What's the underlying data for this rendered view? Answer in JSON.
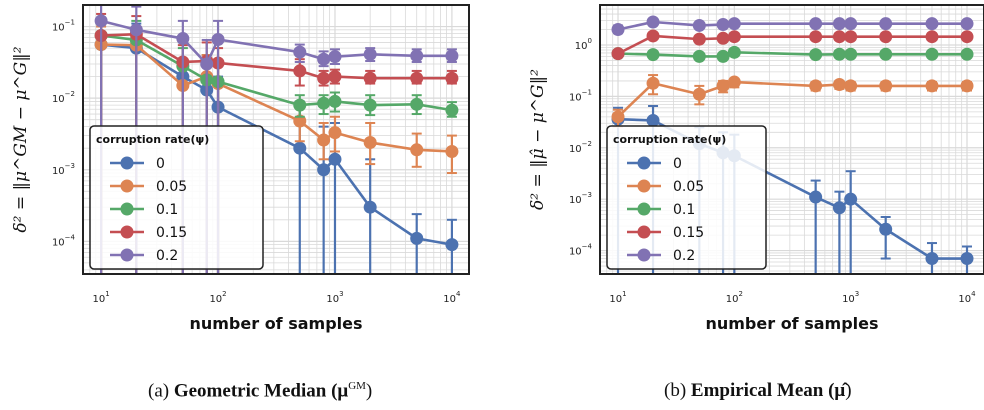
{
  "captions": [
    {
      "prefix": "(a) ",
      "title": "Geometric Median",
      "suffix": " (μ",
      "sup": "GM",
      "end": ")"
    },
    {
      "prefix": "(b) ",
      "title": "Empirical Mean",
      "suffix": " (μ̂",
      "sup": "",
      "end": ")"
    }
  ],
  "colors": {
    "0": "#4c72b0",
    "0.05": "#dd8452",
    "0.1": "#55a868",
    "0.15": "#c44e52",
    "0.2": "#8172b3"
  },
  "chart_data": [
    {
      "type": "line",
      "xscale": "log",
      "yscale": "log",
      "xlabel": "number of samples",
      "ylabel": "δ² = ‖μ^GM − μ^G‖²",
      "xlim": [
        7,
        14000
      ],
      "ylim": [
        3.5e-05,
        0.2
      ],
      "x_ticks": [
        {
          "v": 10,
          "m": "10",
          "e": "1"
        },
        {
          "v": 100,
          "m": "10",
          "e": "2"
        },
        {
          "v": 1000,
          "m": "10",
          "e": "3"
        },
        {
          "v": 10000,
          "m": "10",
          "e": "4"
        }
      ],
      "y_ticks": [
        {
          "v": 0.0001,
          "m": "10",
          "e": "−4"
        },
        {
          "v": 0.001,
          "m": "10",
          "e": "−3"
        },
        {
          "v": 0.01,
          "m": "10",
          "e": "−2"
        },
        {
          "v": 0.1,
          "m": "10",
          "e": "−1"
        }
      ],
      "grid": true,
      "legend": {
        "title": "corruption rate(ψ)",
        "position": "lower-left"
      },
      "series": [
        {
          "name": "0",
          "x": [
            10,
            20,
            50,
            80,
            100,
            500,
            800,
            1000,
            2000,
            5000,
            10000
          ],
          "y": [
            0.056,
            0.05,
            0.02,
            0.013,
            0.0075,
            0.002,
            0.001,
            0.0014,
            0.0003,
            0.00011,
            9e-05
          ],
          "lo": [
            3e-05,
            3e-05,
            3e-05,
            3e-05,
            3e-05,
            3e-05,
            3e-05,
            3e-05,
            3e-05,
            3e-05,
            3e-05
          ],
          "hi": [
            0.12,
            0.11,
            0.06,
            0.04,
            0.02,
            0.009,
            0.004,
            0.0045,
            0.0014,
            0.00024,
            0.0002
          ]
        },
        {
          "name": "0.05",
          "x": [
            10,
            20,
            50,
            80,
            100,
            500,
            800,
            1000,
            2000,
            5000,
            10000
          ],
          "y": [
            0.056,
            0.055,
            0.015,
            0.02,
            0.016,
            0.0048,
            0.0026,
            0.0033,
            0.0024,
            0.0019,
            0.0018
          ],
          "lo": [
            3e-05,
            3e-05,
            3e-05,
            3e-05,
            3e-05,
            0.0025,
            0.0014,
            0.0018,
            0.0012,
            0.0011,
            0.0009
          ],
          "hi": [
            0.1,
            0.09,
            0.028,
            0.04,
            0.03,
            0.0085,
            0.0045,
            0.0055,
            0.0045,
            0.0032,
            0.003
          ]
        },
        {
          "name": "0.1",
          "x": [
            10,
            20,
            50,
            80,
            100,
            500,
            800,
            1000,
            2000,
            5000,
            10000
          ],
          "y": [
            0.075,
            0.065,
            0.028,
            0.018,
            0.017,
            0.008,
            0.0085,
            0.009,
            0.008,
            0.0082,
            0.0068
          ],
          "lo": [
            3e-05,
            3e-05,
            3e-05,
            3e-05,
            3e-05,
            0.0055,
            0.006,
            0.0065,
            0.0058,
            0.006,
            0.0055
          ],
          "hi": [
            0.13,
            0.12,
            0.05,
            0.035,
            0.03,
            0.011,
            0.011,
            0.012,
            0.011,
            0.011,
            0.0088
          ]
        },
        {
          "name": "0.15",
          "x": [
            10,
            20,
            50,
            80,
            100,
            500,
            800,
            1000,
            2000,
            5000,
            10000
          ],
          "y": [
            0.075,
            0.078,
            0.032,
            0.033,
            0.031,
            0.024,
            0.019,
            0.02,
            0.019,
            0.019,
            0.019
          ],
          "lo": [
            3e-05,
            3e-05,
            3e-05,
            3e-05,
            3e-05,
            0.015,
            0.015,
            0.016,
            0.016,
            0.016,
            0.016
          ],
          "hi": [
            0.15,
            0.14,
            0.055,
            0.06,
            0.05,
            0.035,
            0.024,
            0.025,
            0.024,
            0.024,
            0.024
          ]
        },
        {
          "name": "0.2",
          "x": [
            10,
            20,
            50,
            80,
            100,
            500,
            800,
            1000,
            2000,
            5000,
            10000
          ],
          "y": [
            0.12,
            0.09,
            0.068,
            0.03,
            0.066,
            0.044,
            0.035,
            0.038,
            0.041,
            0.039,
            0.039
          ],
          "lo": [
            3e-05,
            3e-05,
            3e-05,
            3e-05,
            3e-05,
            0.032,
            0.028,
            0.03,
            0.033,
            0.032,
            0.032
          ],
          "hi": [
            0.21,
            0.19,
            0.12,
            0.065,
            0.12,
            0.056,
            0.045,
            0.048,
            0.05,
            0.048,
            0.048
          ]
        }
      ]
    },
    {
      "type": "line",
      "xscale": "log",
      "yscale": "log",
      "xlabel": "number of samples",
      "ylabel": "δ² = ‖μ̂ − μ^G‖²",
      "xlim": [
        7,
        14000
      ],
      "ylim": [
        3.5e-05,
        6
      ],
      "x_ticks": [
        {
          "v": 10,
          "m": "10",
          "e": "1"
        },
        {
          "v": 100,
          "m": "10",
          "e": "2"
        },
        {
          "v": 1000,
          "m": "10",
          "e": "3"
        },
        {
          "v": 10000,
          "m": "10",
          "e": "4"
        }
      ],
      "y_ticks": [
        {
          "v": 0.0001,
          "m": "10",
          "e": "−4"
        },
        {
          "v": 0.001,
          "m": "10",
          "e": "−3"
        },
        {
          "v": 0.01,
          "m": "10",
          "e": "−2"
        },
        {
          "v": 0.1,
          "m": "10",
          "e": "−1"
        },
        {
          "v": 1,
          "m": "10",
          "e": "0"
        }
      ],
      "grid": true,
      "legend": {
        "title": "corruption rate(ψ)",
        "position": "lower-left"
      },
      "series": [
        {
          "name": "0",
          "x": [
            10,
            20,
            50,
            80,
            100,
            500,
            800,
            1000,
            2000,
            5000,
            10000
          ],
          "y": [
            0.036,
            0.034,
            0.012,
            0.008,
            0.007,
            0.0011,
            0.00068,
            0.001,
            0.00026,
            7e-05,
            7e-05
          ],
          "lo": [
            3e-05,
            3e-05,
            3e-05,
            3e-05,
            3e-05,
            3e-05,
            3e-05,
            3e-05,
            7e-05,
            3e-05,
            3e-05
          ],
          "hi": [
            0.06,
            0.065,
            0.025,
            0.02,
            0.018,
            0.0023,
            0.0014,
            0.0035,
            0.00045,
            0.00014,
            0.00012
          ]
        },
        {
          "name": "0.05",
          "x": [
            10,
            20,
            50,
            80,
            100,
            500,
            800,
            1000,
            2000,
            5000,
            10000
          ],
          "y": [
            0.04,
            0.18,
            0.11,
            0.16,
            0.19,
            0.16,
            0.17,
            0.16,
            0.16,
            0.16,
            0.16
          ],
          "lo": [
            0.026,
            0.11,
            0.07,
            0.12,
            0.15,
            0.13,
            0.14,
            0.13,
            0.13,
            0.13,
            0.13
          ],
          "hi": [
            0.055,
            0.26,
            0.16,
            0.2,
            0.22,
            0.19,
            0.2,
            0.19,
            0.19,
            0.19,
            0.19
          ]
        },
        {
          "name": "0.1",
          "x": [
            10,
            20,
            50,
            80,
            100,
            500,
            800,
            1000,
            2000,
            5000,
            10000
          ],
          "y": [
            0.68,
            0.65,
            0.6,
            0.6,
            0.72,
            0.65,
            0.66,
            0.66,
            0.66,
            0.66,
            0.66
          ],
          "lo": [
            0.6,
            0.58,
            0.55,
            0.55,
            0.65,
            0.6,
            0.6,
            0.6,
            0.6,
            0.6,
            0.6
          ],
          "hi": [
            0.78,
            0.72,
            0.66,
            0.66,
            0.8,
            0.7,
            0.72,
            0.72,
            0.72,
            0.72,
            0.72
          ]
        },
        {
          "name": "0.15",
          "x": [
            10,
            20,
            50,
            80,
            100,
            500,
            800,
            1000,
            2000,
            5000,
            10000
          ],
          "y": [
            0.68,
            1.5,
            1.3,
            1.35,
            1.45,
            1.45,
            1.45,
            1.45,
            1.45,
            1.45,
            1.45
          ],
          "lo": [
            0.6,
            1.35,
            1.2,
            1.25,
            1.35,
            1.35,
            1.35,
            1.35,
            1.35,
            1.35,
            1.35
          ],
          "hi": [
            0.78,
            1.65,
            1.4,
            1.45,
            1.55,
            1.55,
            1.55,
            1.55,
            1.55,
            1.55,
            1.55
          ]
        },
        {
          "name": "0.2",
          "x": [
            10,
            20,
            50,
            80,
            100,
            500,
            800,
            1000,
            2000,
            5000,
            10000
          ],
          "y": [
            2.0,
            2.8,
            2.4,
            2.5,
            2.6,
            2.6,
            2.6,
            2.6,
            2.6,
            2.6,
            2.6
          ],
          "lo": [
            1.7,
            2.6,
            2.2,
            2.3,
            2.4,
            2.4,
            2.4,
            2.4,
            2.4,
            2.4,
            2.4
          ],
          "hi": [
            2.4,
            3.1,
            2.6,
            2.7,
            2.8,
            2.8,
            2.8,
            2.8,
            2.8,
            2.8,
            2.8
          ]
        }
      ]
    }
  ]
}
